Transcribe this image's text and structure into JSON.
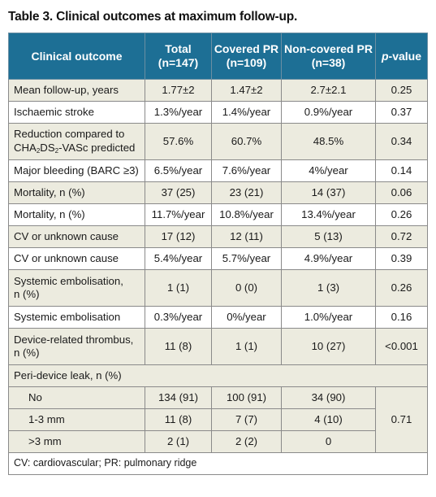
{
  "title": "Table 3. Clinical outcomes at maximum follow-up.",
  "headers": {
    "outcome": "Clinical outcome",
    "total_line1": "Total",
    "total_line2": "(n=147)",
    "covered_line1": "Covered PR",
    "covered_line2": "(n=109)",
    "noncovered_line1": "Non-covered PR",
    "noncovered_line2": "(n=38)",
    "p_italic": "p",
    "p_rest": "-value"
  },
  "rows": [
    {
      "label": "Mean follow-up, years",
      "total": "1.77±2",
      "covered": "1.47±2",
      "noncovered": "2.7±2.1",
      "p": "0.25"
    },
    {
      "label": "Ischaemic stroke",
      "total": "1.3%/year",
      "covered": "1.4%/year",
      "noncovered": "0.9%/year",
      "p": "0.37"
    },
    {
      "label_line1": "Reduction compared to",
      "label_cha": "CHA",
      "label_s1": "2",
      "label_ds": "DS",
      "label_s2": "2",
      "label_rest": "-VASc predicted",
      "total": "57.6%",
      "covered": "60.7%",
      "noncovered": "48.5%",
      "p": "0.34"
    },
    {
      "label": "Major bleeding (BARC ≥3)",
      "total": "6.5%/year",
      "covered": "7.6%/year",
      "noncovered": "4%/year",
      "p": "0.14"
    },
    {
      "label": "Mortality, n (%)",
      "total": "37 (25)",
      "covered": "23 (21)",
      "noncovered": "14 (37)",
      "p": "0.06"
    },
    {
      "label": "Mortality, n (%)",
      "total": "11.7%/year",
      "covered": "10.8%/year",
      "noncovered": "13.4%/year",
      "p": "0.26"
    },
    {
      "label": "CV or unknown cause",
      "total": "17 (12)",
      "covered": "12 (11)",
      "noncovered": "5 (13)",
      "p": "0.72"
    },
    {
      "label": "CV or unknown cause",
      "total": "5.4%/year",
      "covered": "5.7%/year",
      "noncovered": "4.9%/year",
      "p": "0.39"
    },
    {
      "label_line1": "Systemic embolisation,",
      "label_line2": "n (%)",
      "total": "1 (1)",
      "covered": "0 (0)",
      "noncovered": "1 (3)",
      "p": "0.26"
    },
    {
      "label": "Systemic embolisation",
      "total": "0.3%/year",
      "covered": "0%/year",
      "noncovered": "1.0%/year",
      "p": "0.16"
    },
    {
      "label_line1": "Device-related thrombus,",
      "label_line2": "n (%)",
      "total": "11 (8)",
      "covered": "1 (1)",
      "noncovered": "10 (27)",
      "p": "<0.001"
    }
  ],
  "leak": {
    "heading": "Peri-device leak, n (%)",
    "p": "0.71",
    "rows": [
      {
        "label": "No",
        "total": "134 (91)",
        "covered": "100 (91)",
        "noncovered": "34 (90)"
      },
      {
        "label": "1-3 mm",
        "total": "11 (8)",
        "covered": "7 (7)",
        "noncovered": "4 (10)"
      },
      {
        "label": ">3 mm",
        "total": "2 (1)",
        "covered": "2 (2)",
        "noncovered": "0"
      }
    ]
  },
  "footnote": "CV: cardiovascular; PR: pulmonary ridge"
}
